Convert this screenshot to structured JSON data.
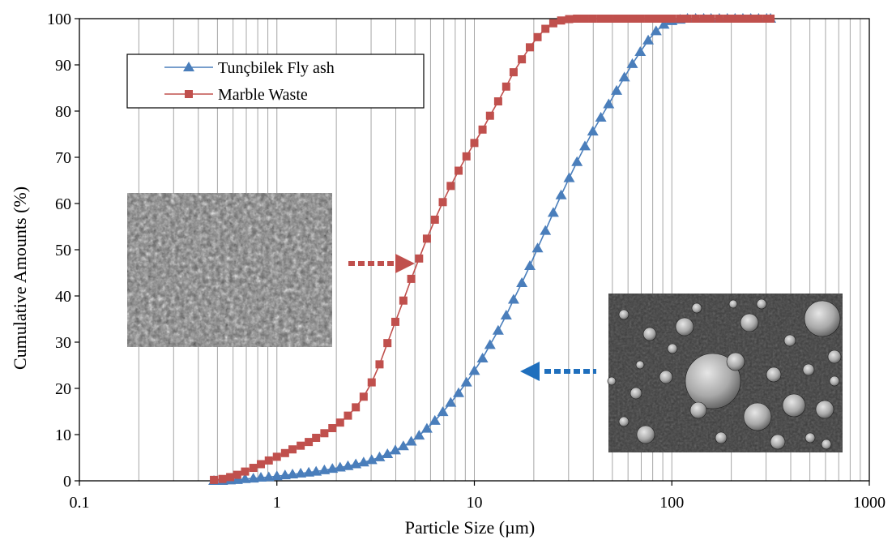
{
  "chart_data": {
    "type": "line",
    "xlabel": "Particle Size (µm)",
    "ylabel": "Cumulative Amounts (%)",
    "xscale": "log",
    "xlim": [
      0.1,
      1000
    ],
    "ylim": [
      0,
      100
    ],
    "x_ticks": [
      "0.1",
      "1",
      "10",
      "100",
      "1000"
    ],
    "y_ticks": [
      "0",
      "10",
      "20",
      "30",
      "40",
      "50",
      "60",
      "70",
      "80",
      "90",
      "100"
    ],
    "grid": "vertical log gridlines",
    "legend_position": "top-left",
    "series": [
      {
        "name": "Tunçbilek Fly ash",
        "color": "#4a7ebb",
        "marker": "triangle",
        "x": [
          0.48,
          0.53,
          0.58,
          0.63,
          0.69,
          0.76,
          0.83,
          0.91,
          1.0,
          1.1,
          1.2,
          1.32,
          1.45,
          1.58,
          1.74,
          1.91,
          2.09,
          2.29,
          2.51,
          2.75,
          3.02,
          3.31,
          3.63,
          3.98,
          4.37,
          4.79,
          5.25,
          5.75,
          6.31,
          6.92,
          7.59,
          8.32,
          9.12,
          10.0,
          11.0,
          12.0,
          13.2,
          14.5,
          15.8,
          17.4,
          19.1,
          20.9,
          22.9,
          25.1,
          27.5,
          30.2,
          33.1,
          36.3,
          39.8,
          43.7,
          47.9,
          52.5,
          57.5,
          63.1,
          69.2,
          75.9,
          83.2,
          91.2,
          100,
          110,
          120,
          132,
          145,
          158,
          174,
          191,
          209,
          229,
          251,
          275,
          302,
          316
        ],
        "values": [
          0,
          0,
          0.1,
          0.2,
          0.4,
          0.5,
          0.7,
          0.8,
          1.0,
          1.2,
          1.4,
          1.6,
          1.8,
          2.0,
          2.3,
          2.6,
          2.9,
          3.2,
          3.6,
          4.0,
          4.5,
          5.1,
          5.8,
          6.6,
          7.5,
          8.5,
          9.8,
          11.3,
          13.0,
          14.9,
          16.9,
          19.0,
          21.3,
          23.8,
          26.5,
          29.4,
          32.5,
          35.8,
          39.2,
          42.8,
          46.5,
          50.3,
          54.1,
          58.0,
          61.8,
          65.5,
          69.0,
          72.4,
          75.6,
          78.6,
          81.5,
          84.4,
          87.3,
          90.2,
          92.8,
          95.3,
          97.3,
          98.7,
          99.5,
          99.8,
          100,
          100,
          100,
          100,
          100,
          100,
          100,
          100,
          100,
          100,
          100,
          100
        ]
      },
      {
        "name": "Marble Waste",
        "color": "#c0504d",
        "marker": "square",
        "x": [
          0.48,
          0.53,
          0.58,
          0.63,
          0.69,
          0.76,
          0.83,
          0.91,
          1.0,
          1.1,
          1.2,
          1.32,
          1.45,
          1.58,
          1.74,
          1.91,
          2.09,
          2.29,
          2.51,
          2.75,
          3.02,
          3.31,
          3.63,
          3.98,
          4.37,
          4.79,
          5.25,
          5.75,
          6.31,
          6.92,
          7.59,
          8.32,
          9.12,
          10.0,
          11.0,
          12.0,
          13.2,
          14.5,
          15.8,
          17.4,
          19.1,
          20.9,
          22.9,
          25.1,
          27.5,
          30.2,
          33.1,
          36.3,
          39.8,
          43.7,
          47.9,
          52.5,
          57.5,
          63.1,
          69.2,
          75.9,
          83.2,
          91.2,
          100,
          110,
          120,
          132,
          145,
          158,
          174,
          191,
          209,
          229,
          251,
          275,
          302,
          316
        ],
        "values": [
          0.2,
          0.4,
          0.8,
          1.3,
          2.0,
          2.8,
          3.6,
          4.4,
          5.2,
          6.0,
          6.8,
          7.6,
          8.4,
          9.3,
          10.3,
          11.4,
          12.6,
          14.1,
          15.9,
          18.2,
          21.3,
          25.2,
          29.8,
          34.4,
          39.0,
          43.7,
          48.1,
          52.4,
          56.5,
          60.3,
          63.8,
          67.1,
          70.2,
          73.1,
          76.0,
          79.0,
          82.1,
          85.3,
          88.4,
          91.2,
          93.8,
          96.0,
          97.8,
          99.0,
          99.6,
          99.9,
          100,
          100,
          100,
          100,
          100,
          100,
          100,
          100,
          100,
          100,
          100,
          100,
          100,
          100,
          100,
          100,
          100,
          100,
          100,
          100,
          100,
          100,
          100,
          100,
          100,
          100
        ]
      }
    ],
    "insets": [
      {
        "name": "marble-waste-sem-image",
        "arrow_color": "#c0504d",
        "points_to": "Marble Waste"
      },
      {
        "name": "fly-ash-sem-image",
        "arrow_color": "#1f6fbd",
        "points_to": "Tunçbilek Fly ash"
      }
    ]
  }
}
